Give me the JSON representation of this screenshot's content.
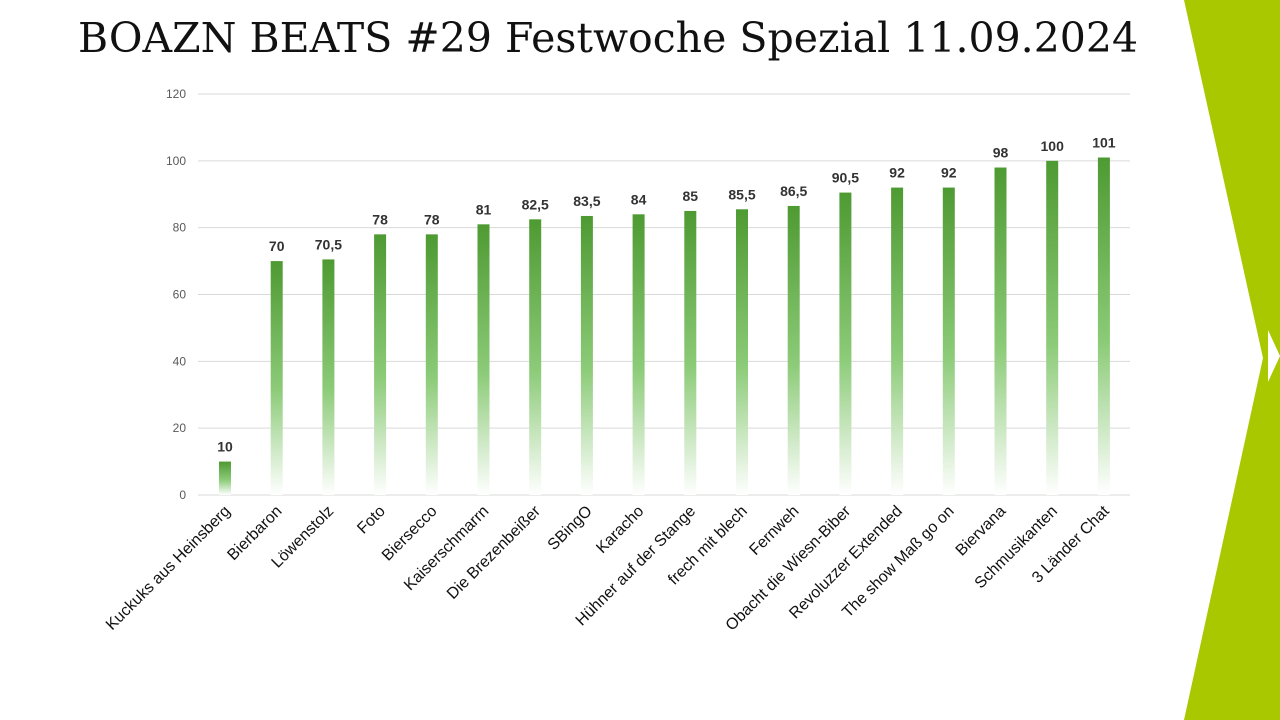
{
  "slide": {
    "title": "BOAZN BEATS #29 Festwoche Spezial 11.09.2024"
  },
  "colors": {
    "accent": "#A9C800",
    "bar_top": "#4E9A32",
    "bar_bottom": "#FFFFFF",
    "grid": "#D9D9D9",
    "text": "#333333"
  },
  "chart_data": {
    "type": "bar",
    "title": "",
    "xlabel": "",
    "ylabel": "",
    "ylim": [
      0,
      120
    ],
    "yticks": [
      0,
      20,
      40,
      60,
      80,
      100,
      120
    ],
    "grid": true,
    "categories": [
      "Kuckuks aus Heinsberg",
      "Bierbaron",
      "Löwenstolz",
      "Foto",
      "Biersecco",
      "Kaiserschmarrn",
      "Die Brezenbeißer",
      "SBingO",
      "Karacho",
      "Hühner auf der Stange",
      "frech mit blech",
      "Fernweh",
      "Obacht die Wiesn-Biber",
      "Revoluzzer Extended",
      "The show Maß go on",
      "Biervana",
      "Schmusikanten",
      "3 Länder Chat"
    ],
    "values": [
      10,
      70,
      70.5,
      78,
      78,
      81,
      82.5,
      83.5,
      84,
      85,
      85.5,
      86.5,
      90.5,
      92,
      92,
      98,
      100,
      101
    ],
    "data_labels": [
      "10",
      "70",
      "70,5",
      "78",
      "78",
      "81",
      "82,5",
      "83,5",
      "84",
      "85",
      "85,5",
      "86,5",
      "90,5",
      "92",
      "92",
      "98",
      "100",
      "101"
    ]
  }
}
